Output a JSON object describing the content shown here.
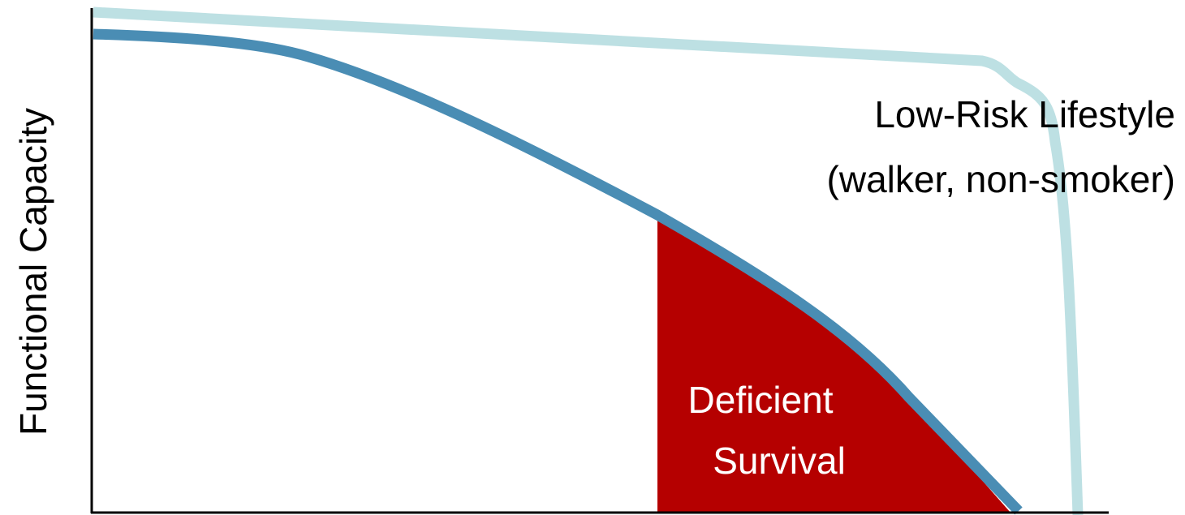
{
  "axis": {
    "y_label": "Functional Capacity"
  },
  "curves": [
    {
      "label": [
        "Low-Risk Lifestyle",
        "(walker, non-smoker)"
      ]
    }
  ],
  "area": {
    "label": [
      "Deficient",
      "Survival"
    ]
  }
}
